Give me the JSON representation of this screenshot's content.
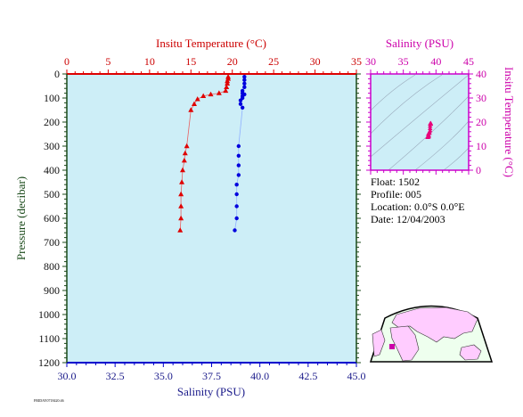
{
  "chart_data": [
    {
      "type": "scatter",
      "name": "profile",
      "top_axis": {
        "label": "Insitu Temperature (°C)",
        "range": [
          0,
          35
        ],
        "ticks": [
          0,
          5,
          10,
          15,
          20,
          25,
          30,
          35
        ],
        "color": "#cc0000"
      },
      "bottom_axis": {
        "label": "Salinity (PSU)",
        "range": [
          30.0,
          45.0
        ],
        "ticks": [
          "30.0",
          "32.5",
          "35.0",
          "37.5",
          "40.0",
          "42.5",
          "45.0"
        ],
        "color": "#1a1a8a"
      },
      "left_axis": {
        "label": "Pressure (decibar)",
        "range": [
          0,
          1200
        ],
        "inverted": true,
        "ticks": [
          0,
          100,
          200,
          300,
          400,
          500,
          600,
          700,
          800,
          900,
          1000,
          1100,
          1200
        ],
        "color": "#1a4a1a"
      },
      "background": "#cdeef7",
      "series": [
        {
          "variable": "temperature",
          "color": "#e00000",
          "marker": "triangle",
          "points": [
            {
              "x": 19.5,
              "p": 12
            },
            {
              "x": 19.5,
              "p": 20
            },
            {
              "x": 19.4,
              "p": 30
            },
            {
              "x": 19.4,
              "p": 40
            },
            {
              "x": 19.3,
              "p": 55
            },
            {
              "x": 19.2,
              "p": 70
            },
            {
              "x": 18.4,
              "p": 80
            },
            {
              "x": 17.4,
              "p": 85
            },
            {
              "x": 16.5,
              "p": 92
            },
            {
              "x": 15.8,
              "p": 105
            },
            {
              "x": 15.4,
              "p": 125
            },
            {
              "x": 15.0,
              "p": 150
            },
            {
              "x": 14.5,
              "p": 300
            },
            {
              "x": 14.3,
              "p": 330
            },
            {
              "x": 14.2,
              "p": 360
            },
            {
              "x": 14.0,
              "p": 400
            },
            {
              "x": 13.9,
              "p": 450
            },
            {
              "x": 13.8,
              "p": 500
            },
            {
              "x": 13.8,
              "p": 550
            },
            {
              "x": 13.8,
              "p": 600
            },
            {
              "x": 13.7,
              "p": 650
            }
          ]
        },
        {
          "variable": "salinity",
          "color": "#0000dd",
          "marker": "circle",
          "points": [
            {
              "x": 39.2,
              "p": 12
            },
            {
              "x": 39.2,
              "p": 25
            },
            {
              "x": 39.2,
              "p": 40
            },
            {
              "x": 39.2,
              "p": 55
            },
            {
              "x": 39.1,
              "p": 70
            },
            {
              "x": 39.1,
              "p": 80
            },
            {
              "x": 39.2,
              "p": 85
            },
            {
              "x": 39.1,
              "p": 92
            },
            {
              "x": 39.1,
              "p": 100
            },
            {
              "x": 39.0,
              "p": 110
            },
            {
              "x": 39.0,
              "p": 125
            },
            {
              "x": 39.1,
              "p": 140
            },
            {
              "x": 38.9,
              "p": 300
            },
            {
              "x": 38.9,
              "p": 340
            },
            {
              "x": 38.9,
              "p": 380
            },
            {
              "x": 38.9,
              "p": 420
            },
            {
              "x": 38.8,
              "p": 460
            },
            {
              "x": 38.8,
              "p": 500
            },
            {
              "x": 38.8,
              "p": 550
            },
            {
              "x": 38.8,
              "p": 600
            },
            {
              "x": 38.7,
              "p": 650
            }
          ]
        }
      ]
    },
    {
      "type": "scatter",
      "name": "ts-diagram",
      "x_axis": {
        "label": "Salinity (PSU)",
        "range": [
          30,
          45
        ],
        "ticks": [
          30,
          35,
          40,
          45
        ],
        "color": "#cc00aa"
      },
      "y_axis": {
        "label": "Insitu Temperature (°C)",
        "range": [
          0,
          40
        ],
        "ticks": [
          0,
          10,
          20,
          30,
          40
        ],
        "color": "#cc00aa"
      },
      "background": "#cdeef7",
      "density_contours": true,
      "points": [
        {
          "s": 38.9,
          "t": 14.0
        },
        {
          "s": 38.9,
          "t": 14.5
        },
        {
          "s": 38.8,
          "t": 13.8
        },
        {
          "s": 38.8,
          "t": 15.0
        },
        {
          "s": 39.0,
          "t": 15.4
        },
        {
          "s": 39.0,
          "t": 15.8
        },
        {
          "s": 39.1,
          "t": 16.5
        },
        {
          "s": 39.1,
          "t": 17.4
        },
        {
          "s": 39.1,
          "t": 18.4
        },
        {
          "s": 39.2,
          "t": 19.2
        },
        {
          "s": 39.2,
          "t": 19.4
        },
        {
          "s": 39.2,
          "t": 19.5
        },
        {
          "s": 38.7,
          "t": 13.7
        },
        {
          "s": 38.8,
          "t": 14.2
        },
        {
          "s": 39.1,
          "t": 19.3
        }
      ],
      "point_color": "#e8007a"
    }
  ],
  "info": {
    "float": "Float:  1502",
    "profile": "Profile:  005",
    "location": "Location:  0.0°S   0.0°E",
    "date": "Date:  12/04/2003"
  },
  "footer_note": "FRIDAY0718420:46",
  "map": {
    "land_color": "#ffccff",
    "ocean_color": "#eeffee",
    "marker_color": "#cc00aa"
  }
}
